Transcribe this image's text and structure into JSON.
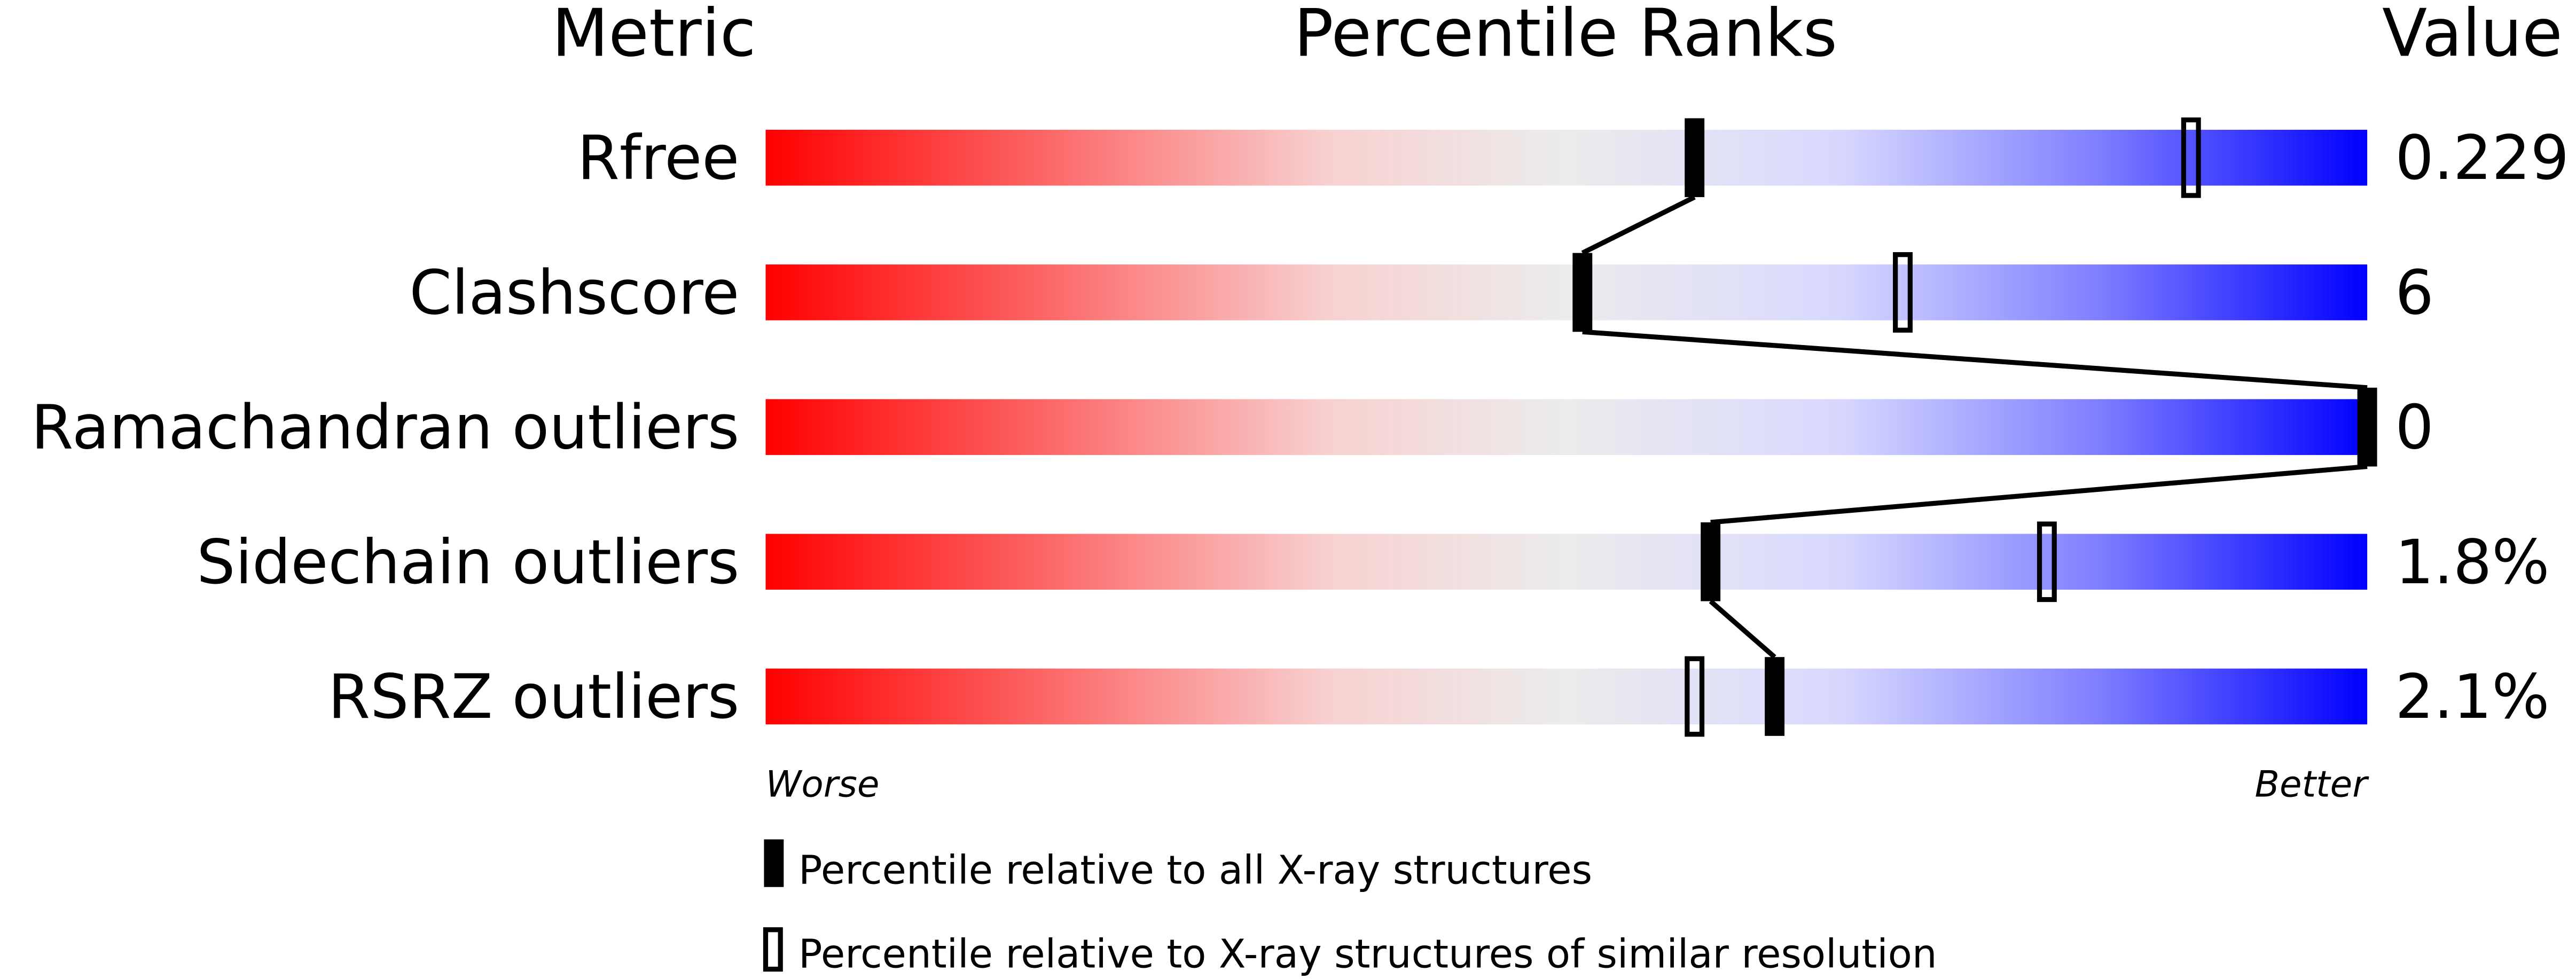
{
  "chart_data": {
    "type": "percentile-ranks",
    "headers": {
      "metric": "Metric",
      "ranks": "Percentile Ranks",
      "value": "Value"
    },
    "xlim": [
      0,
      100
    ],
    "rows": [
      {
        "metric": "Rfree",
        "value": "0.229",
        "percentile_all": 58,
        "percentile_similar": 89
      },
      {
        "metric": "Clashscore",
        "value": "6",
        "percentile_all": 51,
        "percentile_similar": 71
      },
      {
        "metric": "Ramachandran outliers",
        "value": "0",
        "percentile_all": 100,
        "percentile_similar": null
      },
      {
        "metric": "Sidechain outliers",
        "value": "1.8%",
        "percentile_all": 59,
        "percentile_similar": 80
      },
      {
        "metric": "RSRZ outliers",
        "value": "2.1%",
        "percentile_all": 63,
        "percentile_similar": 58
      }
    ],
    "axis_labels": {
      "left": "Worse",
      "right": "Better"
    },
    "legend": {
      "all": "Percentile relative to all X-ray structures",
      "similar": "Percentile relative to X-ray structures of similar resolution"
    },
    "colors": {
      "worse": "#ff0000",
      "mid": "#ececec",
      "better": "#0000ff",
      "marker": "#000000"
    }
  }
}
